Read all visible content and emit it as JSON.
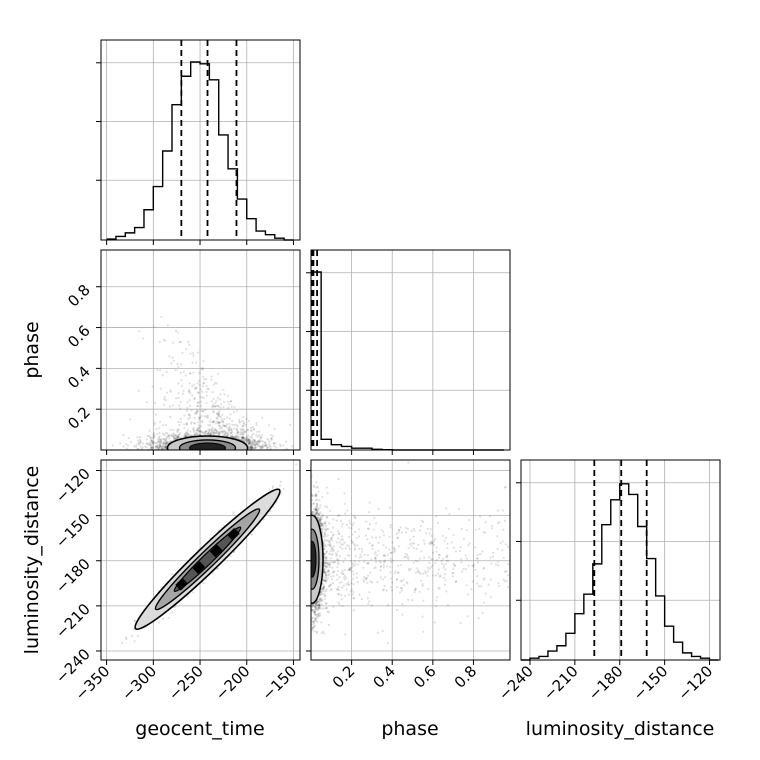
{
  "chart_data": {
    "type": "corner",
    "parameters": [
      "geocent_time",
      "phase",
      "luminosity_distance"
    ],
    "axis_labels": {
      "geocent_time": "geocent_time",
      "phase": "phase",
      "luminosity_distance": "luminosity_distance"
    },
    "ranges": {
      "geocent_time": [
        -356,
        -143
      ],
      "phase": [
        0.0,
        0.98
      ],
      "luminosity_distance": [
        -246,
        -113
      ]
    },
    "ticks": {
      "geocent_time": [
        {
          "value": -350,
          "label": "−350"
        },
        {
          "value": -300,
          "label": "−300"
        },
        {
          "value": -250,
          "label": "−250"
        },
        {
          "value": -200,
          "label": "−200"
        },
        {
          "value": -150,
          "label": "−150"
        }
      ],
      "phase": [
        {
          "value": 0.2,
          "label": "0.2"
        },
        {
          "value": 0.4,
          "label": "0.4"
        },
        {
          "value": 0.6,
          "label": "0.6"
        },
        {
          "value": 0.8,
          "label": "0.8"
        }
      ],
      "luminosity_distance": [
        {
          "value": -240,
          "label": "−240"
        },
        {
          "value": -210,
          "label": "−210"
        },
        {
          "value": -180,
          "label": "−180"
        },
        {
          "value": -150,
          "label": "−150"
        },
        {
          "value": -120,
          "label": "−120"
        }
      ]
    },
    "histograms": {
      "geocent_time": {
        "edges": [
          -350,
          -340,
          -330,
          -320,
          -310,
          -300,
          -290,
          -280,
          -270,
          -260,
          -250,
          -240,
          -230,
          -220,
          -210,
          -200,
          -190,
          -180,
          -170,
          -160,
          -150
        ],
        "counts": [
          0.005,
          0.02,
          0.04,
          0.07,
          0.17,
          0.3,
          0.5,
          0.76,
          0.92,
          1.0,
          0.99,
          0.9,
          0.59,
          0.4,
          0.23,
          0.12,
          0.05,
          0.03,
          0.01,
          0.0
        ]
      },
      "phase": {
        "edges": [
          0.0,
          0.05,
          0.1,
          0.15,
          0.2,
          0.25,
          0.3,
          0.35,
          0.4,
          0.45,
          0.5,
          0.55,
          0.6,
          0.65,
          0.7,
          0.75,
          0.8,
          0.85,
          0.9,
          0.95
        ],
        "counts": [
          1.0,
          0.06,
          0.03,
          0.02,
          0.01,
          0.01,
          0.004,
          0.002,
          0.0,
          0.0,
          0.0,
          0.0,
          0.0,
          0.0,
          0.0,
          0.0,
          0.0,
          0.0,
          0.0
        ]
      },
      "luminosity_distance": {
        "edges": [
          -246,
          -240,
          -234,
          -228,
          -222,
          -216,
          -210,
          -204,
          -198,
          -192,
          -186,
          -180,
          -174,
          -168,
          -162,
          -156,
          -150,
          -144,
          -138,
          -132,
          -126,
          -120,
          -114
        ],
        "counts": [
          0.0,
          0.01,
          0.02,
          0.05,
          0.08,
          0.15,
          0.26,
          0.37,
          0.54,
          0.76,
          0.9,
          0.99,
          0.93,
          0.75,
          0.57,
          0.36,
          0.19,
          0.1,
          0.04,
          0.02,
          0.01,
          0.0
        ]
      }
    },
    "quantiles": {
      "geocent_time": [
        -270,
        -242,
        -211
      ],
      "phase": [
        0.005,
        0.012,
        0.03
      ],
      "luminosity_distance": [
        -197,
        -179,
        -162
      ]
    },
    "correlation": {
      "geocent_time_vs_luminosity_distance": 0.98,
      "geocent_time_vs_phase": 0.0,
      "phase_vs_luminosity_distance": 0.0
    },
    "grid": true
  }
}
